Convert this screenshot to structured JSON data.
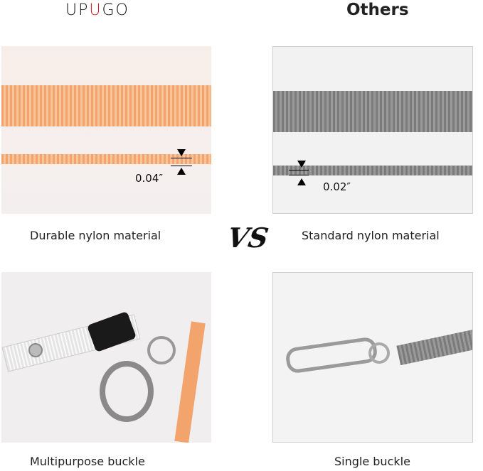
{
  "header": {
    "brand_logo_text": "UPUGO",
    "brand_logo_parts": [
      "UP",
      "U",
      "GO"
    ],
    "competitor_title": "Others",
    "brand_accent": "#d8141d"
  },
  "comparison": {
    "vs_label": "VS",
    "material": {
      "left_label": "Durable nylon material",
      "left_thickness": "0.04″",
      "right_label": "Standard nylon material",
      "right_thickness": "0.02″"
    },
    "buckle": {
      "left_label": "Multipurpose buckle",
      "right_label": "Single buckle"
    }
  },
  "colors": {
    "left_strap": "#f3a46d",
    "right_strap": "#8a8a8a"
  }
}
